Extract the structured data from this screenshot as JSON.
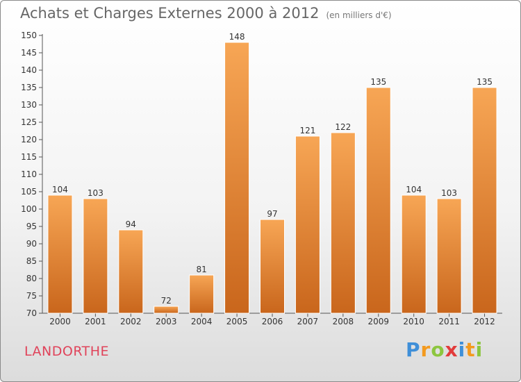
{
  "header": {
    "title": "Achats et Charges Externes 2000 à 2012",
    "subtitle": "(en milliers d'€)"
  },
  "footer": {
    "commune": "LANDORTHE",
    "logo_letters": [
      "P",
      "r",
      "o",
      "x",
      "i",
      "t",
      "i"
    ],
    "logo_colors": [
      "#3f8fd8",
      "#f39a1e",
      "#8cc63f",
      "#e23b3b",
      "#3f8fd8",
      "#f39a1e",
      "#8cc63f"
    ]
  },
  "colors": {
    "bar_light": "#f7a655",
    "bar_dark": "#c9661c",
    "axis": "#555555",
    "label": "#333333"
  },
  "chart_data": {
    "type": "bar",
    "title": "Achats et Charges Externes 2000 à 2012",
    "categories": [
      "2000",
      "2001",
      "2002",
      "2003",
      "2004",
      "2005",
      "2006",
      "2007",
      "2008",
      "2009",
      "2010",
      "2011",
      "2012"
    ],
    "values": [
      104,
      103,
      94,
      72,
      81,
      148,
      97,
      121,
      122,
      135,
      104,
      103,
      135
    ],
    "xlabel": "",
    "ylabel": "",
    "ylim": [
      70,
      150
    ],
    "yticks": [
      70,
      75,
      80,
      85,
      90,
      95,
      100,
      105,
      110,
      115,
      120,
      125,
      130,
      135,
      140,
      145,
      150
    ],
    "grid": false,
    "legend": "none"
  }
}
